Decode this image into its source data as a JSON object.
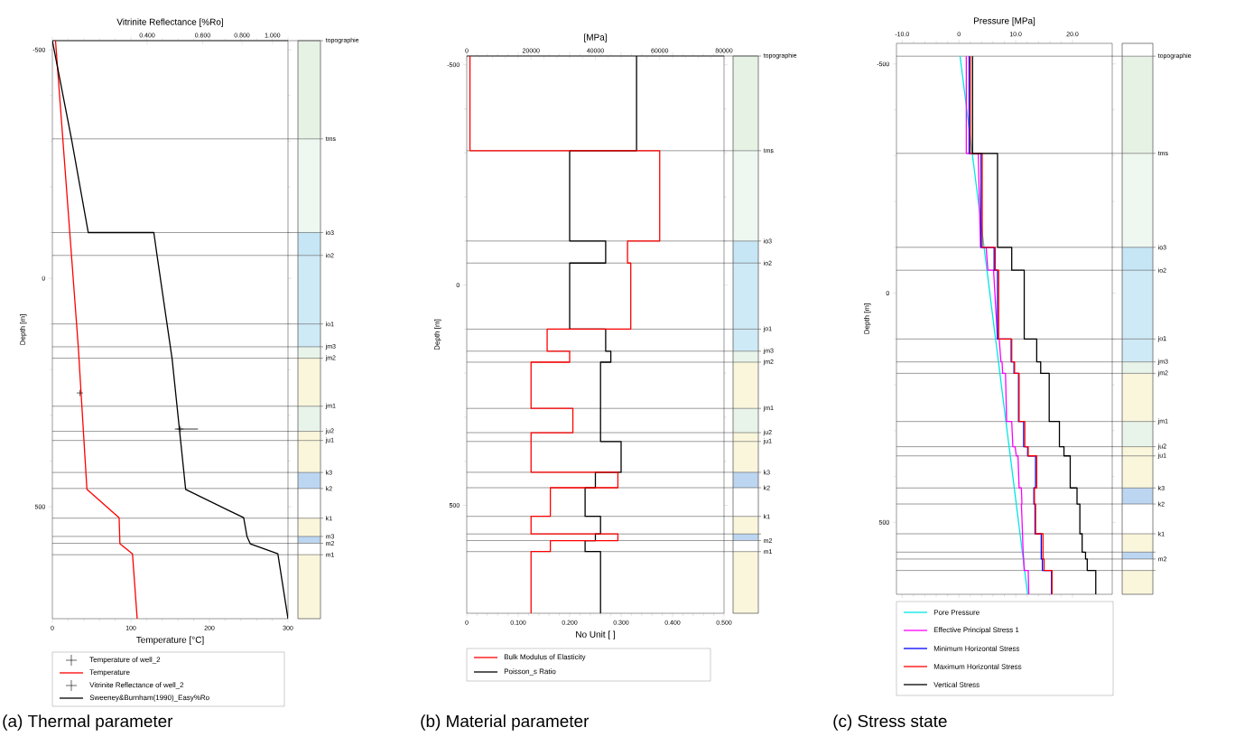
{
  "chart_data": [
    {
      "type": "line",
      "title": "(a) Thermal parameter",
      "xlabel": "Temperature [°C]",
      "x2label": "Vitrinite Reflectance [%Ro]",
      "ylabel": "Depth [m]",
      "xlim": [
        0,
        300
      ],
      "xticks": [
        0,
        100,
        200,
        300
      ],
      "x2lim": [
        0.2,
        1.12
      ],
      "x2ticks": [
        {
          "value": 0.4,
          "label": "0.400"
        },
        {
          "value": 0.6,
          "label": "0.600"
        },
        {
          "value": 0.8,
          "label": "0.800"
        },
        {
          "value": 1.0,
          "label": "1.000"
        }
      ],
      "log": "x2",
      "ylim": [
        745,
        -520
      ],
      "yticks": [
        -500,
        0,
        500
      ],
      "legend": "bottom",
      "series": [
        {
          "name": "Temperature of well_2",
          "type": "scatter",
          "marker": "cross",
          "color": "#000000",
          "x": [
            35
          ],
          "values": [
            251
          ]
        },
        {
          "name": "Temperature",
          "type": "line",
          "color": "#ff0000",
          "x": [
            4,
            33,
            44,
            85,
            86,
            102,
            108
          ],
          "values": [
            -520,
            150,
            462,
            524,
            581,
            603,
            745
          ]
        },
        {
          "name": "Vitrinite Reflectance of well_2",
          "type": "scatter",
          "marker": "cross",
          "axis": "x2",
          "color": "#000000",
          "x": [
            0.51
          ],
          "values": [
            330
          ],
          "xerrors": [
            [
              0.49,
              0.58
            ]
          ]
        },
        {
          "name": "Sweeney&Burnham(1990)_Easy%Ro",
          "type": "line",
          "axis": "x2",
          "color": "#000000",
          "x": [
            0.2,
            0.23,
            0.26,
            0.42,
            0.43,
            0.48,
            0.53,
            0.81,
            0.83,
            0.85,
            1.04,
            1.12
          ],
          "values": [
            -520,
            -305,
            -100,
            -100,
            -50,
            176,
            462,
            524,
            565,
            581,
            603,
            745
          ]
        }
      ],
      "ref_lines": [
        {
          "axis": "y",
          "value": -520,
          "label": "topographie"
        },
        {
          "axis": "y",
          "value": -305,
          "label": "tms"
        },
        {
          "axis": "y",
          "value": -100,
          "label": "io3"
        },
        {
          "axis": "y",
          "value": -50,
          "label": "io2"
        },
        {
          "axis": "y",
          "value": 100,
          "label": "io1"
        },
        {
          "axis": "y",
          "value": 150,
          "label": "jm3"
        },
        {
          "axis": "y",
          "value": 175,
          "label": "jm2"
        },
        {
          "axis": "y",
          "value": 280,
          "label": "jm1"
        },
        {
          "axis": "y",
          "value": 335,
          "label": "ju2"
        },
        {
          "axis": "y",
          "value": 355,
          "label": "ju1"
        },
        {
          "axis": "y",
          "value": 425,
          "label": "k3"
        },
        {
          "axis": "y",
          "value": 460,
          "label": "k2"
        },
        {
          "axis": "y",
          "value": 525,
          "label": "k1"
        },
        {
          "axis": "y",
          "value": 565,
          "label": "m3"
        },
        {
          "axis": "y",
          "value": 580,
          "label": "m2"
        },
        {
          "axis": "y",
          "value": 605,
          "label": "m1"
        }
      ]
    },
    {
      "type": "line",
      "title": "(b) Material parameter",
      "xlabel": "No Unit [ ]",
      "x2label": "[MPa]",
      "ylabel": "Depth [m]",
      "xlim": [
        0,
        0.5
      ],
      "xticks": [
        0,
        {
          "value": 0.1,
          "label": "0.100"
        },
        {
          "value": 0.2,
          "label": "0.200"
        },
        {
          "value": 0.3,
          "label": "0.300"
        },
        {
          "value": 0.4,
          "label": "0.400"
        },
        {
          "value": 0.5,
          "label": "0.500"
        }
      ],
      "x2lim": [
        0,
        80000
      ],
      "x2ticks": [
        0,
        20000,
        40000,
        60000,
        80000
      ],
      "ylim": [
        745,
        -520
      ],
      "yticks": [
        -500,
        0,
        500
      ],
      "legend": "bottom",
      "series": [
        {
          "name": "Bulk Modulus of Elasticity",
          "type": "line",
          "axis": "x2",
          "color": "#ff0000",
          "x": [
            1000,
            1000,
            60000,
            60000,
            50000,
            50000,
            51000,
            51000,
            25000,
            25000,
            32000,
            32000,
            20000,
            20000,
            33000,
            33000,
            20000,
            20000,
            47000,
            47000,
            26000,
            26000,
            20000,
            20000,
            47000,
            47000,
            26000,
            26000,
            20000,
            20000
          ],
          "values": [
            -520,
            -305,
            -305,
            -100,
            -100,
            -50,
            -50,
            100,
            100,
            150,
            150,
            175,
            175,
            280,
            280,
            335,
            335,
            425,
            425,
            460,
            460,
            525,
            525,
            565,
            565,
            580,
            580,
            605,
            605,
            745
          ]
        },
        {
          "name": "Poisson_s Ratio",
          "type": "line",
          "color": "#000000",
          "x": [
            0.33,
            0.33,
            0.2,
            0.2,
            0.27,
            0.27,
            0.2,
            0.2,
            0.27,
            0.27,
            0.28,
            0.28,
            0.26,
            0.26,
            0.3,
            0.3,
            0.25,
            0.25,
            0.23,
            0.23,
            0.26,
            0.26,
            0.25,
            0.25,
            0.23,
            0.23,
            0.26,
            0.26
          ],
          "values": [
            -520,
            -305,
            -305,
            -100,
            -100,
            -50,
            -50,
            100,
            100,
            150,
            150,
            175,
            175,
            355,
            355,
            425,
            425,
            460,
            460,
            525,
            525,
            565,
            565,
            580,
            580,
            605,
            605,
            745
          ]
        }
      ],
      "ref_lines": [
        {
          "axis": "y",
          "value": -520,
          "label": "topographie"
        },
        {
          "axis": "y",
          "value": -305,
          "label": "tms"
        },
        {
          "axis": "y",
          "value": -100,
          "label": "io3"
        },
        {
          "axis": "y",
          "value": -50,
          "label": "io2"
        },
        {
          "axis": "y",
          "value": 100,
          "label": "jo1"
        },
        {
          "axis": "y",
          "value": 150,
          "label": "jm3"
        },
        {
          "axis": "y",
          "value": 175,
          "label": "jm2"
        },
        {
          "axis": "y",
          "value": 280,
          "label": "jm1"
        },
        {
          "axis": "y",
          "value": 335,
          "label": "ju2"
        },
        {
          "axis": "y",
          "value": 355,
          "label": "ju1"
        },
        {
          "axis": "y",
          "value": 425,
          "label": "k3"
        },
        {
          "axis": "y",
          "value": 460,
          "label": "k2"
        },
        {
          "axis": "y",
          "value": 525,
          "label": "k1"
        },
        {
          "axis": "y",
          "value": 565
        },
        {
          "axis": "y",
          "value": 580,
          "label": "m2"
        },
        {
          "axis": "y",
          "value": 605,
          "label": "m1"
        }
      ]
    },
    {
      "type": "line",
      "title": "(c) Stress state",
      "xlabel": "Pressure [MPa]",
      "ylabel": "Depth [m]",
      "xlim": [
        -11,
        27
      ],
      "xticks": [
        {
          "value": -10,
          "label": "-10.0"
        },
        0,
        {
          "value": 10,
          "label": "10.0"
        },
        {
          "value": 20,
          "label": "20.0"
        }
      ],
      "ylim": [
        657,
        -545
      ],
      "yticks": [
        -500,
        0,
        500
      ],
      "legend": "bottom",
      "series": [
        {
          "name": "Pore Pressure",
          "type": "line",
          "color": "#00e5e5",
          "x": [
            0.2,
            12.1
          ],
          "values": [
            -517,
            657
          ]
        },
        {
          "name": "Effective Principal Stress 1",
          "type": "line",
          "color": "#ff00ff",
          "x": [
            1.3,
            1.3,
            3.4,
            3.8,
            4.8,
            5.1,
            6.1,
            6.8,
            7.1,
            7.4,
            7.6,
            7.7,
            8.2,
            8.4,
            9.3,
            9.5,
            9.9,
            10.1,
            10.4,
            10.6,
            11.0,
            11.1,
            11.0,
            11.2,
            11.2,
            11.3,
            11.3,
            11.4,
            11.4,
            11.5,
            12.2,
            12.3
          ],
          "values": [
            -517,
            -305,
            -305,
            -100,
            -100,
            -50,
            -50,
            100,
            100,
            150,
            150,
            175,
            175,
            280,
            280,
            335,
            335,
            355,
            355,
            425,
            425,
            460,
            460,
            525,
            525,
            565,
            565,
            580,
            580,
            605,
            605,
            657
          ]
        },
        {
          "name": "Minimum Horizontal Stress",
          "type": "line",
          "color": "#0000ff",
          "x": [
            1.8,
            1.8,
            3.9,
            3.9,
            6.2,
            6.2,
            6.8,
            6.8,
            9.2,
            9.2,
            9.7,
            9.7,
            10.5,
            10.5,
            11.4,
            11.4,
            12.1,
            12.1,
            13.5,
            13.5,
            13.2,
            13.2,
            13.4,
            13.4,
            14.5,
            14.5,
            14.7,
            14.7,
            16.3,
            16.3
          ],
          "values": [
            -517,
            -305,
            -305,
            -100,
            -100,
            -50,
            -50,
            100,
            100,
            150,
            150,
            175,
            175,
            280,
            280,
            335,
            335,
            355,
            355,
            425,
            425,
            460,
            460,
            525,
            525,
            580,
            580,
            605,
            605,
            657
          ]
        },
        {
          "name": "Maximum Horizontal Stress",
          "type": "line",
          "color": "#ff0000",
          "x": [
            2.0,
            2.0,
            4.1,
            4.1,
            6.4,
            6.4,
            7.0,
            7.0,
            9.3,
            9.3,
            9.8,
            9.8,
            10.6,
            10.6,
            11.6,
            11.6,
            12.2,
            12.2,
            13.7,
            13.7,
            13.3,
            13.3,
            13.5,
            13.5,
            14.8,
            14.8,
            15.0,
            15.0,
            16.4,
            16.4
          ],
          "values": [
            -517,
            -305,
            -305,
            -100,
            -100,
            -50,
            -50,
            100,
            100,
            150,
            150,
            175,
            175,
            280,
            280,
            335,
            335,
            355,
            355,
            425,
            425,
            460,
            460,
            525,
            525,
            580,
            580,
            605,
            605,
            657
          ]
        },
        {
          "name": "Vertical Stress",
          "type": "line",
          "color": "#000000",
          "x": [
            2.4,
            2.4,
            6.8,
            6.8,
            9.3,
            9.3,
            11.5,
            11.5,
            13.7,
            13.7,
            14.4,
            14.4,
            15.9,
            15.9,
            17.7,
            17.7,
            18.5,
            18.5,
            19.6,
            19.6,
            20.8,
            20.8,
            21.3,
            21.3,
            21.7,
            21.7,
            22.3,
            22.3,
            22.6,
            22.6,
            24.1,
            24.1
          ],
          "values": [
            -517,
            -305,
            -305,
            -100,
            -100,
            -50,
            -50,
            100,
            100,
            150,
            150,
            175,
            175,
            280,
            280,
            335,
            335,
            355,
            355,
            425,
            425,
            460,
            460,
            525,
            525,
            565,
            565,
            580,
            580,
            605,
            605,
            657
          ]
        }
      ],
      "ref_lines": [
        {
          "axis": "y",
          "value": -517,
          "label": "topographie"
        },
        {
          "axis": "y",
          "value": -305,
          "label": "tms"
        },
        {
          "axis": "y",
          "value": -100,
          "label": "io3"
        },
        {
          "axis": "y",
          "value": -50,
          "label": "io2"
        },
        {
          "axis": "y",
          "value": 100,
          "label": "jo1"
        },
        {
          "axis": "y",
          "value": 150,
          "label": "jm3"
        },
        {
          "axis": "y",
          "value": 175,
          "label": "jm2"
        },
        {
          "axis": "y",
          "value": 280,
          "label": "jm1"
        },
        {
          "axis": "y",
          "value": 335,
          "label": "ju2"
        },
        {
          "axis": "y",
          "value": 355,
          "label": "ju1"
        },
        {
          "axis": "y",
          "value": 425,
          "label": "k3"
        },
        {
          "axis": "y",
          "value": 460,
          "label": "k2"
        },
        {
          "axis": "y",
          "value": 525,
          "label": "k1"
        },
        {
          "axis": "y",
          "value": 565
        },
        {
          "axis": "y",
          "value": 580,
          "label": "m2"
        },
        {
          "axis": "y",
          "value": 605
        }
      ]
    }
  ]
}
